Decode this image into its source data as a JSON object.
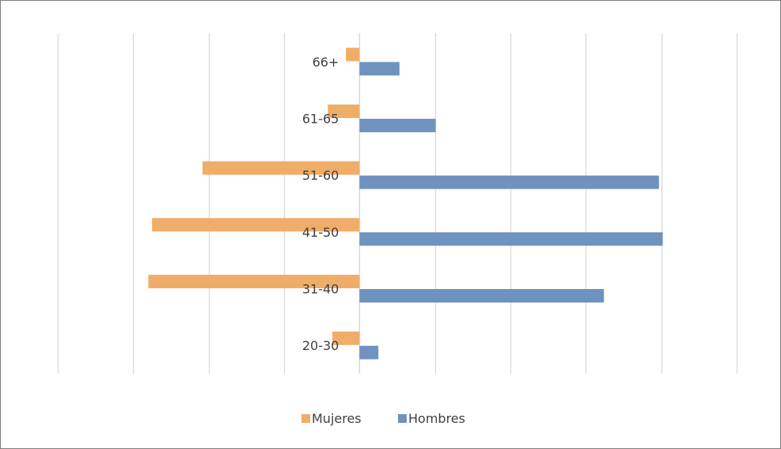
{
  "chart_data": {
    "type": "bar",
    "orientation": "horizontal",
    "layout": "population-pyramid",
    "categories": [
      "66+",
      "61-65",
      "51-60",
      "41-50",
      "31-40",
      "20-30"
    ],
    "series": [
      {
        "name": "Mujeres",
        "color": "#F0AD68",
        "values": [
          -1.8,
          -4.2,
          -20.8,
          -27.5,
          -28.0,
          -3.6
        ]
      },
      {
        "name": "Hombres",
        "color": "#6F93BE",
        "values": [
          5.3,
          10.1,
          39.7,
          40.2,
          32.4,
          2.5
        ]
      }
    ],
    "xlim": [
      -40,
      50
    ],
    "x_gridline_step": 10,
    "tick_labels_visible": false,
    "grid": "vertical",
    "legend": "bottom-center"
  }
}
